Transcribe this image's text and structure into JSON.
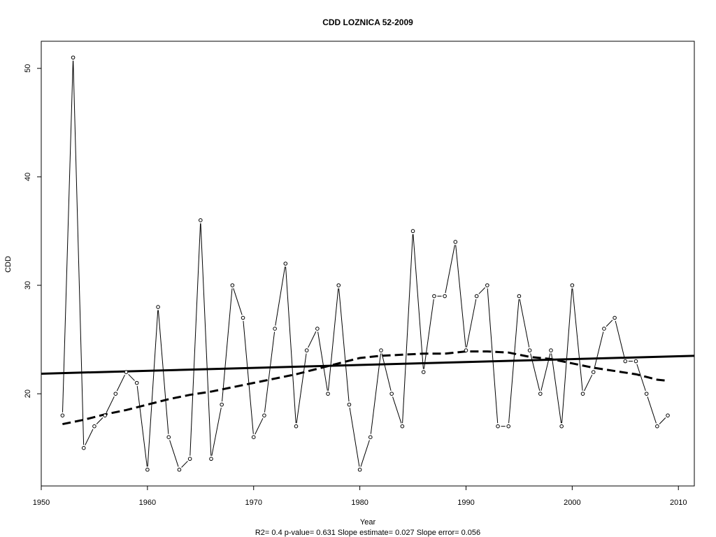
{
  "chart_data": {
    "type": "line",
    "title": "CDD    LOZNICA 52-2009",
    "xlabel": "Year",
    "ylabel": "CDD",
    "subtitle": "R2= 0.4  p-value= 0.631  Slope estimate= 0.027  Slope error= 0.056",
    "xlim": [
      1950,
      2011.5
    ],
    "ylim": [
      11.5,
      52.5
    ],
    "xticks": [
      1950,
      1960,
      1970,
      1980,
      1990,
      2000,
      2010
    ],
    "yticks": [
      20,
      30,
      40,
      50
    ],
    "grid": false,
    "series": [
      {
        "style": "points-and-lines",
        "x": [
          1952,
          1953,
          1954,
          1955,
          1956,
          1957,
          1958,
          1959,
          1960,
          1961,
          1962,
          1963,
          1964,
          1965,
          1966,
          1967,
          1968,
          1969,
          1970,
          1971,
          1972,
          1973,
          1974,
          1975,
          1976,
          1977,
          1978,
          1979,
          1980,
          1981,
          1982,
          1983,
          1984,
          1985,
          1986,
          1987,
          1988,
          1989,
          1990,
          1991,
          1992,
          1993,
          1994,
          1995,
          1996,
          1997,
          1998,
          1999,
          2000,
          2001,
          2002,
          2003,
          2004,
          2005,
          2006,
          2007,
          2008,
          2009
        ],
        "y": [
          18,
          51,
          15,
          17,
          18,
          20,
          22,
          21,
          13,
          28,
          16,
          13,
          14,
          36,
          14,
          19,
          30,
          27,
          16,
          18,
          26,
          32,
          17,
          24,
          26,
          20,
          30,
          19,
          13,
          16,
          24,
          20,
          17,
          35,
          22,
          29,
          29,
          34,
          24,
          29,
          30,
          17,
          17,
          29,
          24,
          20,
          24,
          17,
          30,
          20,
          22,
          26,
          27,
          23,
          23,
          20,
          17,
          18
        ]
      },
      {
        "style": "solid-trend",
        "x": [
          1950,
          2011.5
        ],
        "y": [
          21.85,
          23.5
        ]
      },
      {
        "style": "dashed-smooth",
        "x": [
          1952,
          1954,
          1956,
          1958,
          1960,
          1962,
          1964,
          1966,
          1968,
          1970,
          1972,
          1974,
          1976,
          1978,
          1980,
          1982,
          1984,
          1986,
          1988,
          1990,
          1992,
          1994,
          1996,
          1998,
          2000,
          2002,
          2004,
          2006,
          2008,
          2009
        ],
        "y": [
          17.2,
          17.6,
          18.1,
          18.5,
          19.0,
          19.5,
          19.9,
          20.2,
          20.6,
          21.0,
          21.4,
          21.8,
          22.3,
          22.8,
          23.3,
          23.5,
          23.6,
          23.7,
          23.7,
          23.9,
          23.9,
          23.8,
          23.4,
          23.2,
          22.8,
          22.4,
          22.1,
          21.8,
          21.3,
          21.2
        ]
      }
    ]
  }
}
